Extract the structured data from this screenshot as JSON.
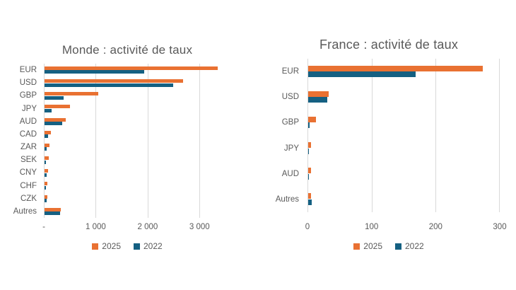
{
  "page": {
    "background": "#FFFFFF"
  },
  "colors": {
    "series_2025": "#E97132",
    "series_2022": "#156082",
    "gridline": "#D9D9D9",
    "title_text": "#595959",
    "label_text": "#595959"
  },
  "chart_data": [
    {
      "type": "bar",
      "orientation": "horizontal",
      "title": "Monde : activité de taux",
      "categories": [
        "EUR",
        "USD",
        "GBP",
        "JPY",
        "AUD",
        "CAD",
        "ZAR",
        "SEK",
        "CNY",
        "CHF",
        "CZK",
        "Autres"
      ],
      "series": [
        {
          "name": "2025",
          "color": "#E97132",
          "values": [
            3340,
            2670,
            1030,
            490,
            410,
            120,
            100,
            75,
            65,
            55,
            50,
            310
          ]
        },
        {
          "name": "2022",
          "color": "#156082",
          "values": [
            1920,
            2480,
            370,
            130,
            340,
            70,
            35,
            30,
            45,
            20,
            45,
            295
          ]
        }
      ],
      "xlim": [
        0,
        3500
      ],
      "ticks": [
        {
          "value": 0,
          "label": "-"
        },
        {
          "value": 1000,
          "label": "1 000"
        },
        {
          "value": 2000,
          "label": "2 000"
        },
        {
          "value": 3000,
          "label": "3 000"
        }
      ],
      "grid": true,
      "legend_position": "bottom",
      "legend": [
        "2025",
        "2022"
      ]
    },
    {
      "type": "bar",
      "orientation": "horizontal",
      "title": "France : activité de taux",
      "categories": [
        "EUR",
        "USD",
        "GBP",
        "JPY",
        "AUD",
        "Autres"
      ],
      "series": [
        {
          "name": "2025",
          "color": "#E97132",
          "values": [
            272,
            32,
            12,
            4,
            4,
            4
          ]
        },
        {
          "name": "2022",
          "color": "#156082",
          "values": [
            168,
            30,
            2,
            1,
            1,
            5
          ]
        }
      ],
      "xlim": [
        0,
        300
      ],
      "ticks": [
        {
          "value": 0,
          "label": "0"
        },
        {
          "value": 100,
          "label": "100"
        },
        {
          "value": 200,
          "label": "200"
        },
        {
          "value": 300,
          "label": "300"
        }
      ],
      "grid": true,
      "legend_position": "bottom",
      "legend": [
        "2025",
        "2022"
      ]
    }
  ]
}
